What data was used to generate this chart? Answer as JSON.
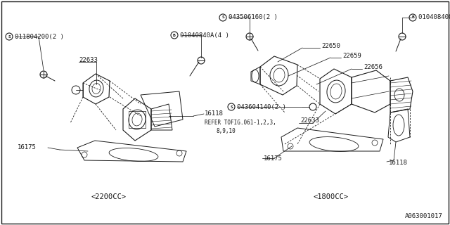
{
  "bg_color": "#ffffff",
  "line_color": "#1a1a1a",
  "text_color": "#1a1a1a",
  "fig_width": 6.4,
  "fig_height": 3.2,
  "dpi": 100,
  "footer_text": "A063001017",
  "left_label": "<2200CC>",
  "right_label": "<1800CC>",
  "border": true
}
